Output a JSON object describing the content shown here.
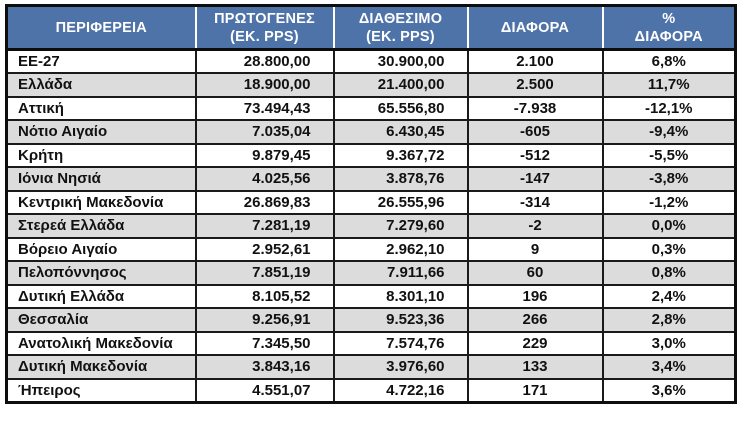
{
  "table": {
    "columns": [
      {
        "id": "region",
        "line1": "ΠΕΡΙΦΕΡΕΙΑ",
        "line2": ""
      },
      {
        "id": "primary",
        "line1": "ΠΡΩΤΟΓΕΝΕΣ",
        "line2": "(ΕΚ. PPS)"
      },
      {
        "id": "available",
        "line1": "ΔΙΑΘΕΣΙΜΟ",
        "line2": "(ΕΚ. PPS)"
      },
      {
        "id": "diff",
        "line1": "ΔΙΑΦΟΡΑ",
        "line2": ""
      },
      {
        "id": "pct",
        "line1": "%",
        "line2": "ΔΙΑΦΟΡΑ"
      }
    ],
    "rows": [
      {
        "region": "ΕΕ-27",
        "primary": "28.800,00",
        "available": "30.900,00",
        "diff": "2.100",
        "pct": "6,8%"
      },
      {
        "region": "Ελλάδα",
        "primary": "18.900,00",
        "available": "21.400,00",
        "diff": "2.500",
        "pct": "11,7%"
      },
      {
        "region": "Αττική",
        "primary": "73.494,43",
        "available": "65.556,80",
        "diff": "-7.938",
        "pct": "-12,1%"
      },
      {
        "region": "Νότιο Αιγαίο",
        "primary": "7.035,04",
        "available": "6.430,45",
        "diff": "-605",
        "pct": "-9,4%"
      },
      {
        "region": "Κρήτη",
        "primary": "9.879,45",
        "available": "9.367,72",
        "diff": "-512",
        "pct": "-5,5%"
      },
      {
        "region": "Ιόνια Νησιά",
        "primary": "4.025,56",
        "available": "3.878,76",
        "diff": "-147",
        "pct": "-3,8%"
      },
      {
        "region": "Κεντρική Μακεδονία",
        "primary": "26.869,83",
        "available": "26.555,96",
        "diff": "-314",
        "pct": "-1,2%"
      },
      {
        "region": "Στερεά Ελλάδα",
        "primary": "7.281,19",
        "available": "7.279,60",
        "diff": "-2",
        "pct": "0,0%"
      },
      {
        "region": "Βόρειο Αιγαίο",
        "primary": "2.952,61",
        "available": "2.962,10",
        "diff": "9",
        "pct": "0,3%"
      },
      {
        "region": "Πελοπόννησος",
        "primary": "7.851,19",
        "available": "7.911,66",
        "diff": "60",
        "pct": "0,8%"
      },
      {
        "region": "Δυτική Ελλάδα",
        "primary": "8.105,52",
        "available": "8.301,10",
        "diff": "196",
        "pct": "2,4%"
      },
      {
        "region": "Θεσσαλία",
        "primary": "9.256,91",
        "available": "9.523,36",
        "diff": "266",
        "pct": "2,8%"
      },
      {
        "region": "Ανατολική Μακεδονία",
        "primary": "7.345,50",
        "available": "7.574,76",
        "diff": "229",
        "pct": "3,0%"
      },
      {
        "region": "Δυτική Μακεδονία",
        "primary": "3.843,16",
        "available": "3.976,60",
        "diff": "133",
        "pct": "3,4%"
      },
      {
        "region": "Ήπειρος",
        "primary": "4.551,07",
        "available": "4.722,16",
        "diff": "171",
        "pct": "3,6%"
      }
    ],
    "colors": {
      "header_bg": "#4e73a8",
      "header_text": "#ffffff",
      "stripe_bg": "#dcdcdc",
      "row_bg": "#ffffff",
      "border": "#1a1a1a"
    }
  }
}
